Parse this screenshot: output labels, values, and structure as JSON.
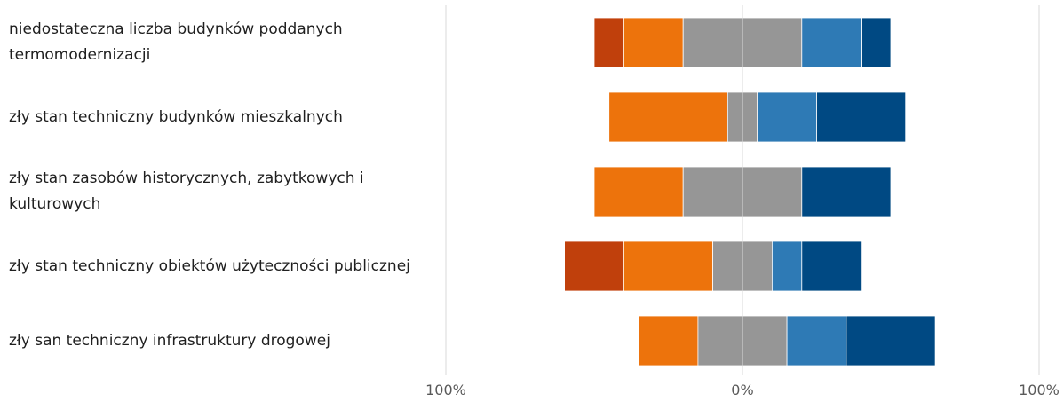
{
  "chart_data": {
    "type": "bar",
    "orientation": "horizontal-diverging",
    "categories": [
      "niedostateczna liczba budynków poddanych termomodernizacji",
      "zły stan techniczny budynków mieszkalnych",
      "zły stan zasobów historycznych, zabytkowych i kulturowych",
      "zły stan techniczny obiektów użyteczności publicznej",
      "zły san techniczny infrastruktury drogowej"
    ],
    "series": [
      {
        "color": "#c0400c",
        "side": "negative",
        "values": [
          10,
          0,
          0,
          20,
          0
        ]
      },
      {
        "color": "#ed730c",
        "side": "negative",
        "values": [
          20,
          40,
          30,
          30,
          20
        ]
      },
      {
        "color": "#969696",
        "side": "neutral",
        "values": [
          40,
          10,
          40,
          20,
          30
        ]
      },
      {
        "color": "#2e7ab5",
        "side": "positive",
        "values": [
          20,
          20,
          0,
          10,
          20
        ]
      },
      {
        "color": "#004983",
        "side": "positive",
        "values": [
          10,
          30,
          30,
          20,
          30
        ]
      }
    ],
    "xlim": [
      -100,
      100
    ],
    "x_ticks": [
      {
        "value": -100,
        "label": "100%"
      },
      {
        "value": 0,
        "label": "0%"
      },
      {
        "value": 100,
        "label": "100%"
      }
    ],
    "grid": true,
    "legend": "none"
  }
}
